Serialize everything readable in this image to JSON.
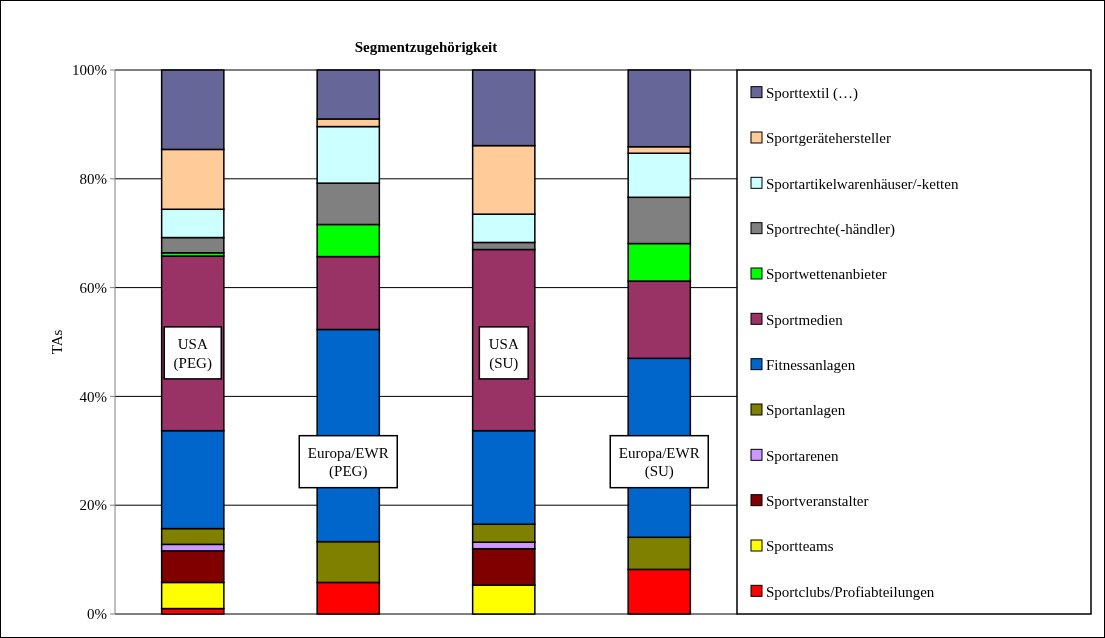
{
  "chart_data": {
    "type": "bar",
    "stacked": true,
    "title": "Segmentzugehörigkeit",
    "ylabel": "TAs",
    "categories": [
      "USA (PEG)",
      "Europa/EWR (PEG)",
      "USA (SU)",
      "Europa/EWR (SU)"
    ],
    "ylim": [
      0,
      100
    ],
    "yticks": [
      {
        "value": 0,
        "label": "0%"
      },
      {
        "value": 20,
        "label": "20%"
      },
      {
        "value": 40,
        "label": "40%"
      },
      {
        "value": 60,
        "label": "60%"
      },
      {
        "value": 80,
        "label": "80%"
      },
      {
        "value": 100,
        "label": "100%"
      }
    ],
    "grid": "y",
    "legend": "right",
    "series": [
      {
        "name": "Sportclubs/Profiabteilungen",
        "color": "#ff0000",
        "values": [
          1.0,
          5.8,
          0,
          8.2
        ]
      },
      {
        "name": "Sportteams",
        "color": "#ffff00",
        "values": [
          4.8,
          0,
          5.3,
          0
        ]
      },
      {
        "name": "Sportveranstalter",
        "color": "#800000",
        "values": [
          5.8,
          0,
          6.7,
          0
        ]
      },
      {
        "name": "Sportarenen",
        "color": "#cc99ff",
        "values": [
          1.2,
          0,
          1.2,
          0
        ]
      },
      {
        "name": "Sportanlagen",
        "color": "#808000",
        "values": [
          2.9,
          7.5,
          3.3,
          5.9
        ]
      },
      {
        "name": "Fitnessanlagen",
        "color": "#0066cc",
        "values": [
          18.0,
          39.0,
          17.2,
          32.9
        ]
      },
      {
        "name": "Sportmedien",
        "color": "#993366",
        "values": [
          32.1,
          13.4,
          33.3,
          14.2
        ]
      },
      {
        "name": "Sportwettenanbieter",
        "color": "#00ff00",
        "values": [
          0.6,
          5.9,
          0,
          6.9
        ]
      },
      {
        "name": "Sportrechte(-händler)",
        "color": "#808080",
        "values": [
          2.8,
          7.6,
          1.3,
          8.5
        ]
      },
      {
        "name": "Sportartikelwarenhäuser/-ketten",
        "color": "#ccffff",
        "values": [
          5.2,
          10.4,
          5.2,
          8.1
        ]
      },
      {
        "name": "Sportgerätehersteller",
        "color": "#ffcc99",
        "values": [
          11.0,
          1.4,
          12.6,
          1.2
        ]
      },
      {
        "name": "Sporttextil (…)",
        "color": "#666699",
        "values": [
          14.6,
          9.0,
          13.9,
          14.1
        ]
      }
    ]
  }
}
